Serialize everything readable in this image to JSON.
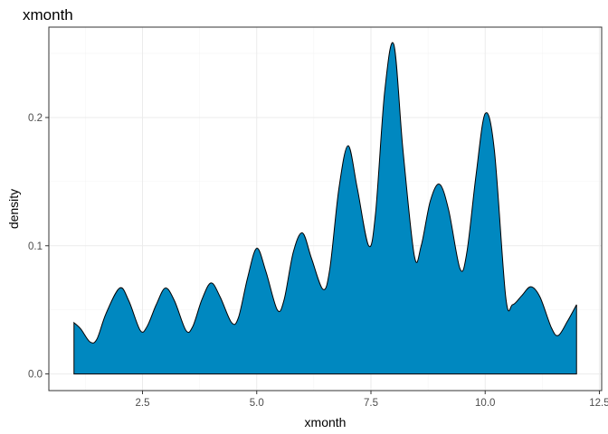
{
  "chart_data": {
    "type": "area",
    "title": "xmonth",
    "xlabel": "xmonth",
    "ylabel": "density",
    "xlim": [
      0.45,
      12.55
    ],
    "ylim": [
      -0.013,
      0.2705
    ],
    "x_ticks": [
      2.5,
      5.0,
      7.5,
      10.0,
      12.5
    ],
    "x_tick_labels": [
      "2.5",
      "5.0",
      "7.5",
      "10.0",
      "12.5"
    ],
    "y_ticks": [
      0.0,
      0.1,
      0.2
    ],
    "y_tick_labels": [
      "0.0",
      "0.1",
      "0.2"
    ],
    "grid": true,
    "legend": "none",
    "fill_color": "#0088C0",
    "line_color": "#000000",
    "x": [
      1.0,
      1.15,
      1.35,
      1.5,
      1.7,
      2.0,
      2.2,
      2.45,
      2.6,
      2.8,
      3.0,
      3.2,
      3.45,
      3.6,
      3.8,
      4.0,
      4.2,
      4.45,
      4.6,
      4.8,
      5.0,
      5.2,
      5.45,
      5.6,
      5.8,
      6.0,
      6.2,
      6.45,
      6.6,
      6.8,
      7.0,
      7.2,
      7.45,
      7.6,
      7.8,
      8.0,
      8.2,
      8.45,
      8.6,
      8.8,
      9.0,
      9.2,
      9.45,
      9.6,
      9.8,
      10.0,
      10.2,
      10.45,
      10.6,
      10.8,
      11.0,
      11.2,
      11.45,
      11.6,
      11.8,
      12.0
    ],
    "values": [
      0.04,
      0.035,
      0.025,
      0.027,
      0.047,
      0.067,
      0.057,
      0.034,
      0.037,
      0.054,
      0.067,
      0.057,
      0.034,
      0.037,
      0.058,
      0.071,
      0.06,
      0.04,
      0.044,
      0.075,
      0.098,
      0.08,
      0.05,
      0.058,
      0.095,
      0.11,
      0.09,
      0.066,
      0.082,
      0.145,
      0.178,
      0.145,
      0.1,
      0.125,
      0.22,
      0.257,
      0.175,
      0.092,
      0.1,
      0.135,
      0.148,
      0.128,
      0.082,
      0.095,
      0.155,
      0.203,
      0.175,
      0.06,
      0.054,
      0.061,
      0.068,
      0.06,
      0.036,
      0.03,
      0.041,
      0.054
    ]
  }
}
